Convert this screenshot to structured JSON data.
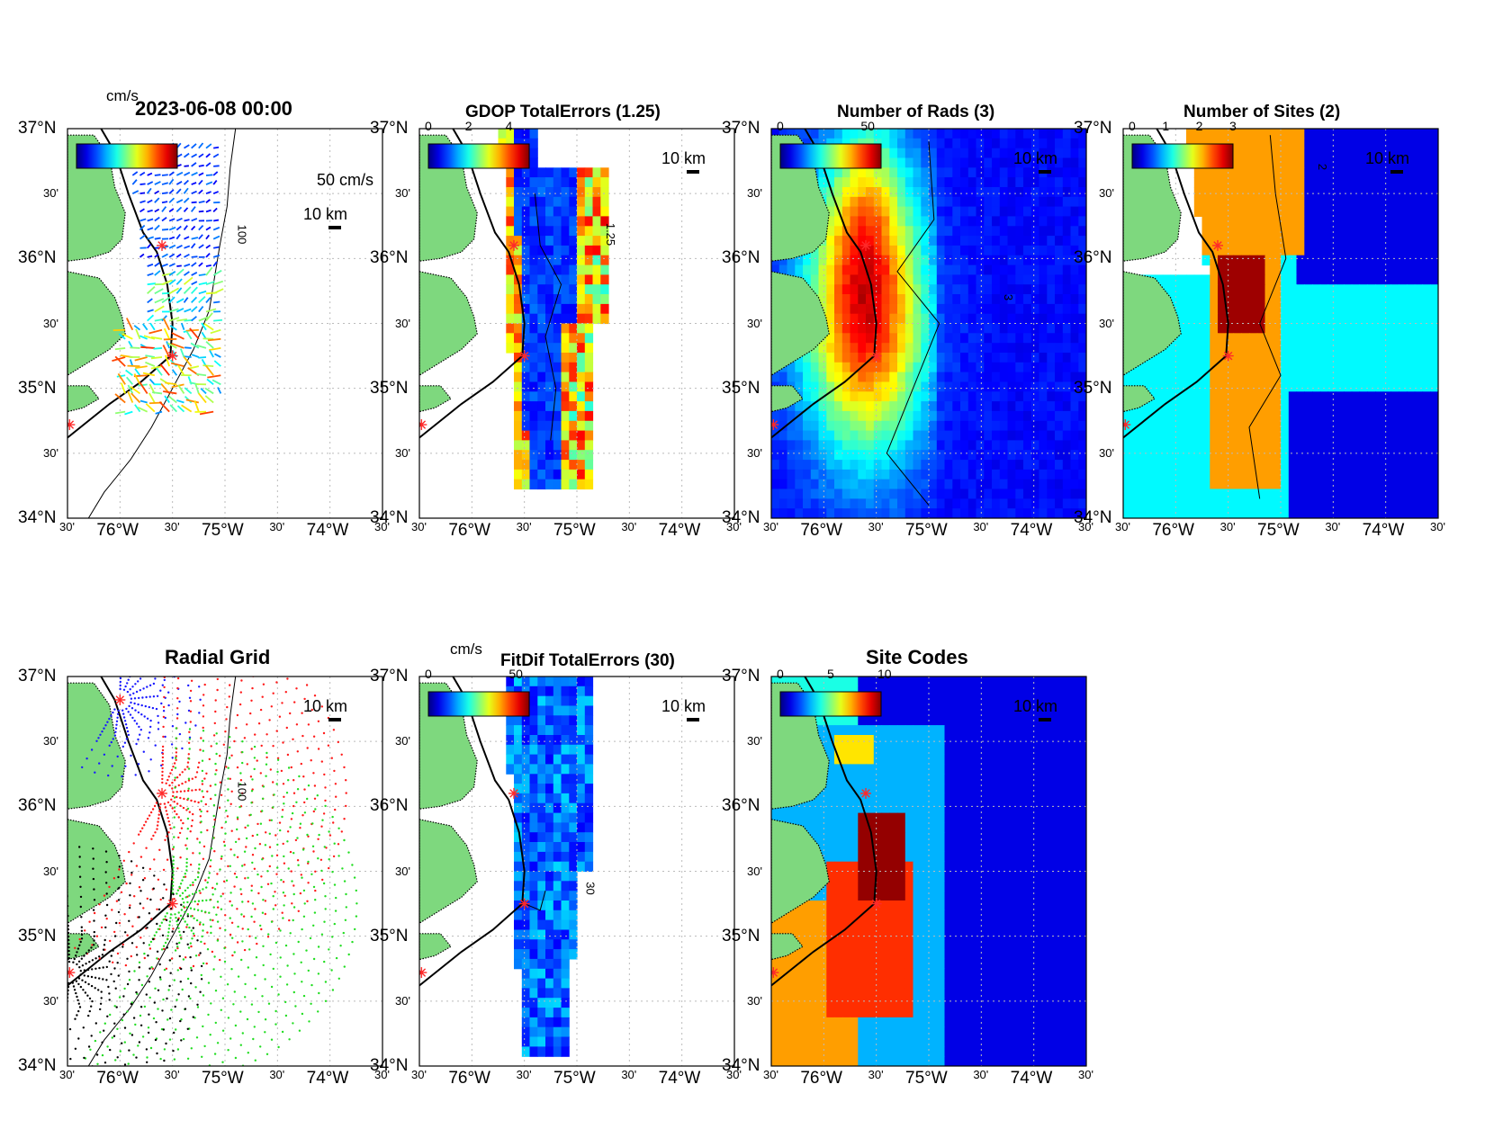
{
  "colors": {
    "land": "#7ed87e",
    "coast": "#000000",
    "grid": "#bbbbbb",
    "site_marker": "#ff2a2a",
    "jet_low": "#00008f",
    "jet_high": "#800000"
  },
  "axis": {
    "lat_labels": [
      "37°N",
      "30'",
      "36°N",
      "30'",
      "35°N",
      "30'",
      "34°N"
    ],
    "lon_labels": [
      "30'",
      "76°W",
      "30'",
      "75°W",
      "30'",
      "74°W",
      "30'"
    ],
    "lat_range": [
      34,
      37
    ],
    "lon_range": [
      -76.5,
      -73.5
    ]
  },
  "panels": [
    {
      "id": "currents",
      "title": "2023-06-08 00:00",
      "colorbar_unit": "cm/s",
      "colorbar_ticks": [],
      "vector_scale_label": "50 cm/s",
      "scale_label": "10 km",
      "contour_label": "100",
      "cmap": "vectors"
    },
    {
      "id": "gdop",
      "title": "GDOP TotalErrors (1.25)",
      "colorbar_unit": "",
      "colorbar_ticks": [
        "0",
        "2",
        "4"
      ],
      "scale_label": "10 km",
      "contour_label": "1.25",
      "cmap": "jet"
    },
    {
      "id": "rads",
      "title": "Number of Rads (3)",
      "colorbar_unit": "",
      "colorbar_ticks": [
        "0",
        "50"
      ],
      "scale_label": "10 km",
      "contour_label": "3",
      "cmap": "jet"
    },
    {
      "id": "sites",
      "title": "Number of Sites (2)",
      "colorbar_unit": "",
      "colorbar_ticks": [
        "0",
        "1",
        "2",
        "3"
      ],
      "scale_label": "10 km",
      "contour_label": "2",
      "cmap": "jet"
    },
    {
      "id": "radial",
      "title": "Radial Grid",
      "colorbar_unit": "",
      "colorbar_ticks": [],
      "scale_label": "10 km",
      "contour_label": "100",
      "cmap": "none"
    },
    {
      "id": "fitdif",
      "title": "FitDif TotalErrors (30)",
      "colorbar_unit": "cm/s",
      "colorbar_ticks": [
        "0",
        "50"
      ],
      "scale_label": "10 km",
      "contour_label": "30",
      "cmap": "jet"
    },
    {
      "id": "codes",
      "title": "Site Codes",
      "colorbar_unit": "",
      "colorbar_ticks": [
        "0",
        "5",
        "10"
      ],
      "scale_label": "10 km",
      "contour_label": "",
      "cmap": "jet"
    }
  ],
  "radar_sites": [
    {
      "lon": -76.0,
      "lat": 36.82
    },
    {
      "lon": -75.6,
      "lat": 36.1
    },
    {
      "lon": -75.5,
      "lat": 35.25
    },
    {
      "lon": -76.48,
      "lat": 34.72
    }
  ]
}
